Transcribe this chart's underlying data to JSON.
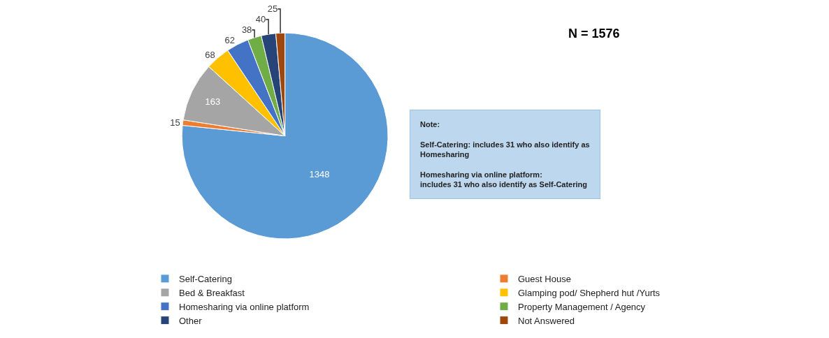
{
  "chart_data": {
    "type": "pie",
    "categories": [
      "Self-Catering",
      "Guest House",
      "Bed & Breakfast",
      "Glamping pod/ Shepherd hut /Yurts",
      "Homesharing via online platform",
      "Property Management / Agency",
      "Other",
      "Not Answered"
    ],
    "values": [
      1348,
      15,
      163,
      68,
      62,
      38,
      40,
      25
    ],
    "colors": [
      "#5b9bd5",
      "#ed7d31",
      "#a5a5a5",
      "#ffc000",
      "#4472c4",
      "#70ad47",
      "#264478",
      "#9e480e"
    ],
    "data_labels": true,
    "legend": "bottom",
    "annotations": [
      "N = 1576",
      "Note:\n\nSelf-Catering: includes 31 who also identify as\nHomesharing\n\nHomesharing via online platform:\nincludes 31 who also identify as Self-Catering"
    ]
  }
}
